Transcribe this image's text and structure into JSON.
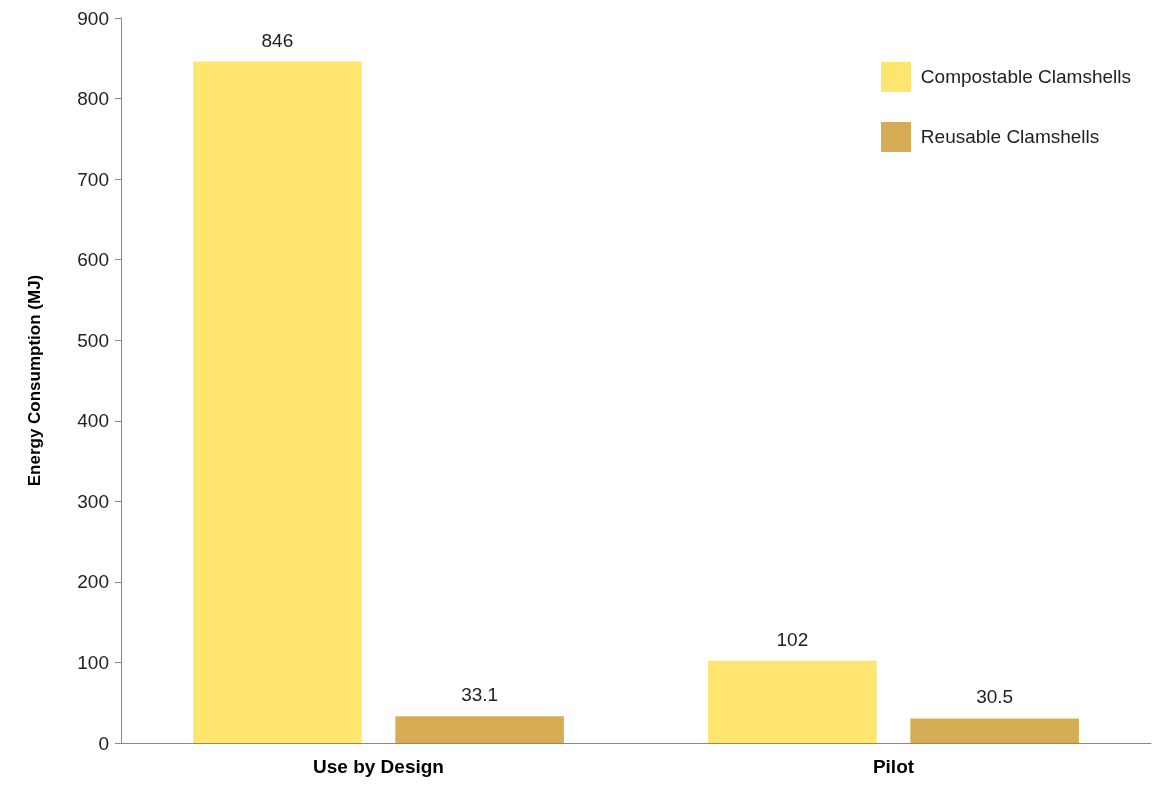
{
  "chart_data": {
    "type": "bar",
    "ylabel": "Energy Consumption (MJ)",
    "categories": [
      "Use by Design",
      "Pilot"
    ],
    "series": [
      {
        "name": "Compostable Clamshells",
        "color": "#fde570",
        "values": [
          846,
          102
        ]
      },
      {
        "name": "Reusable Clamshells",
        "color": "#d6ad55",
        "values": [
          33.1,
          30.5
        ]
      }
    ],
    "ylim": [
      0,
      900
    ],
    "yticks": [
      0,
      100,
      200,
      300,
      400,
      500,
      600,
      700,
      800,
      900
    ],
    "grid": false,
    "legend": "top right",
    "data_labels": true
  }
}
